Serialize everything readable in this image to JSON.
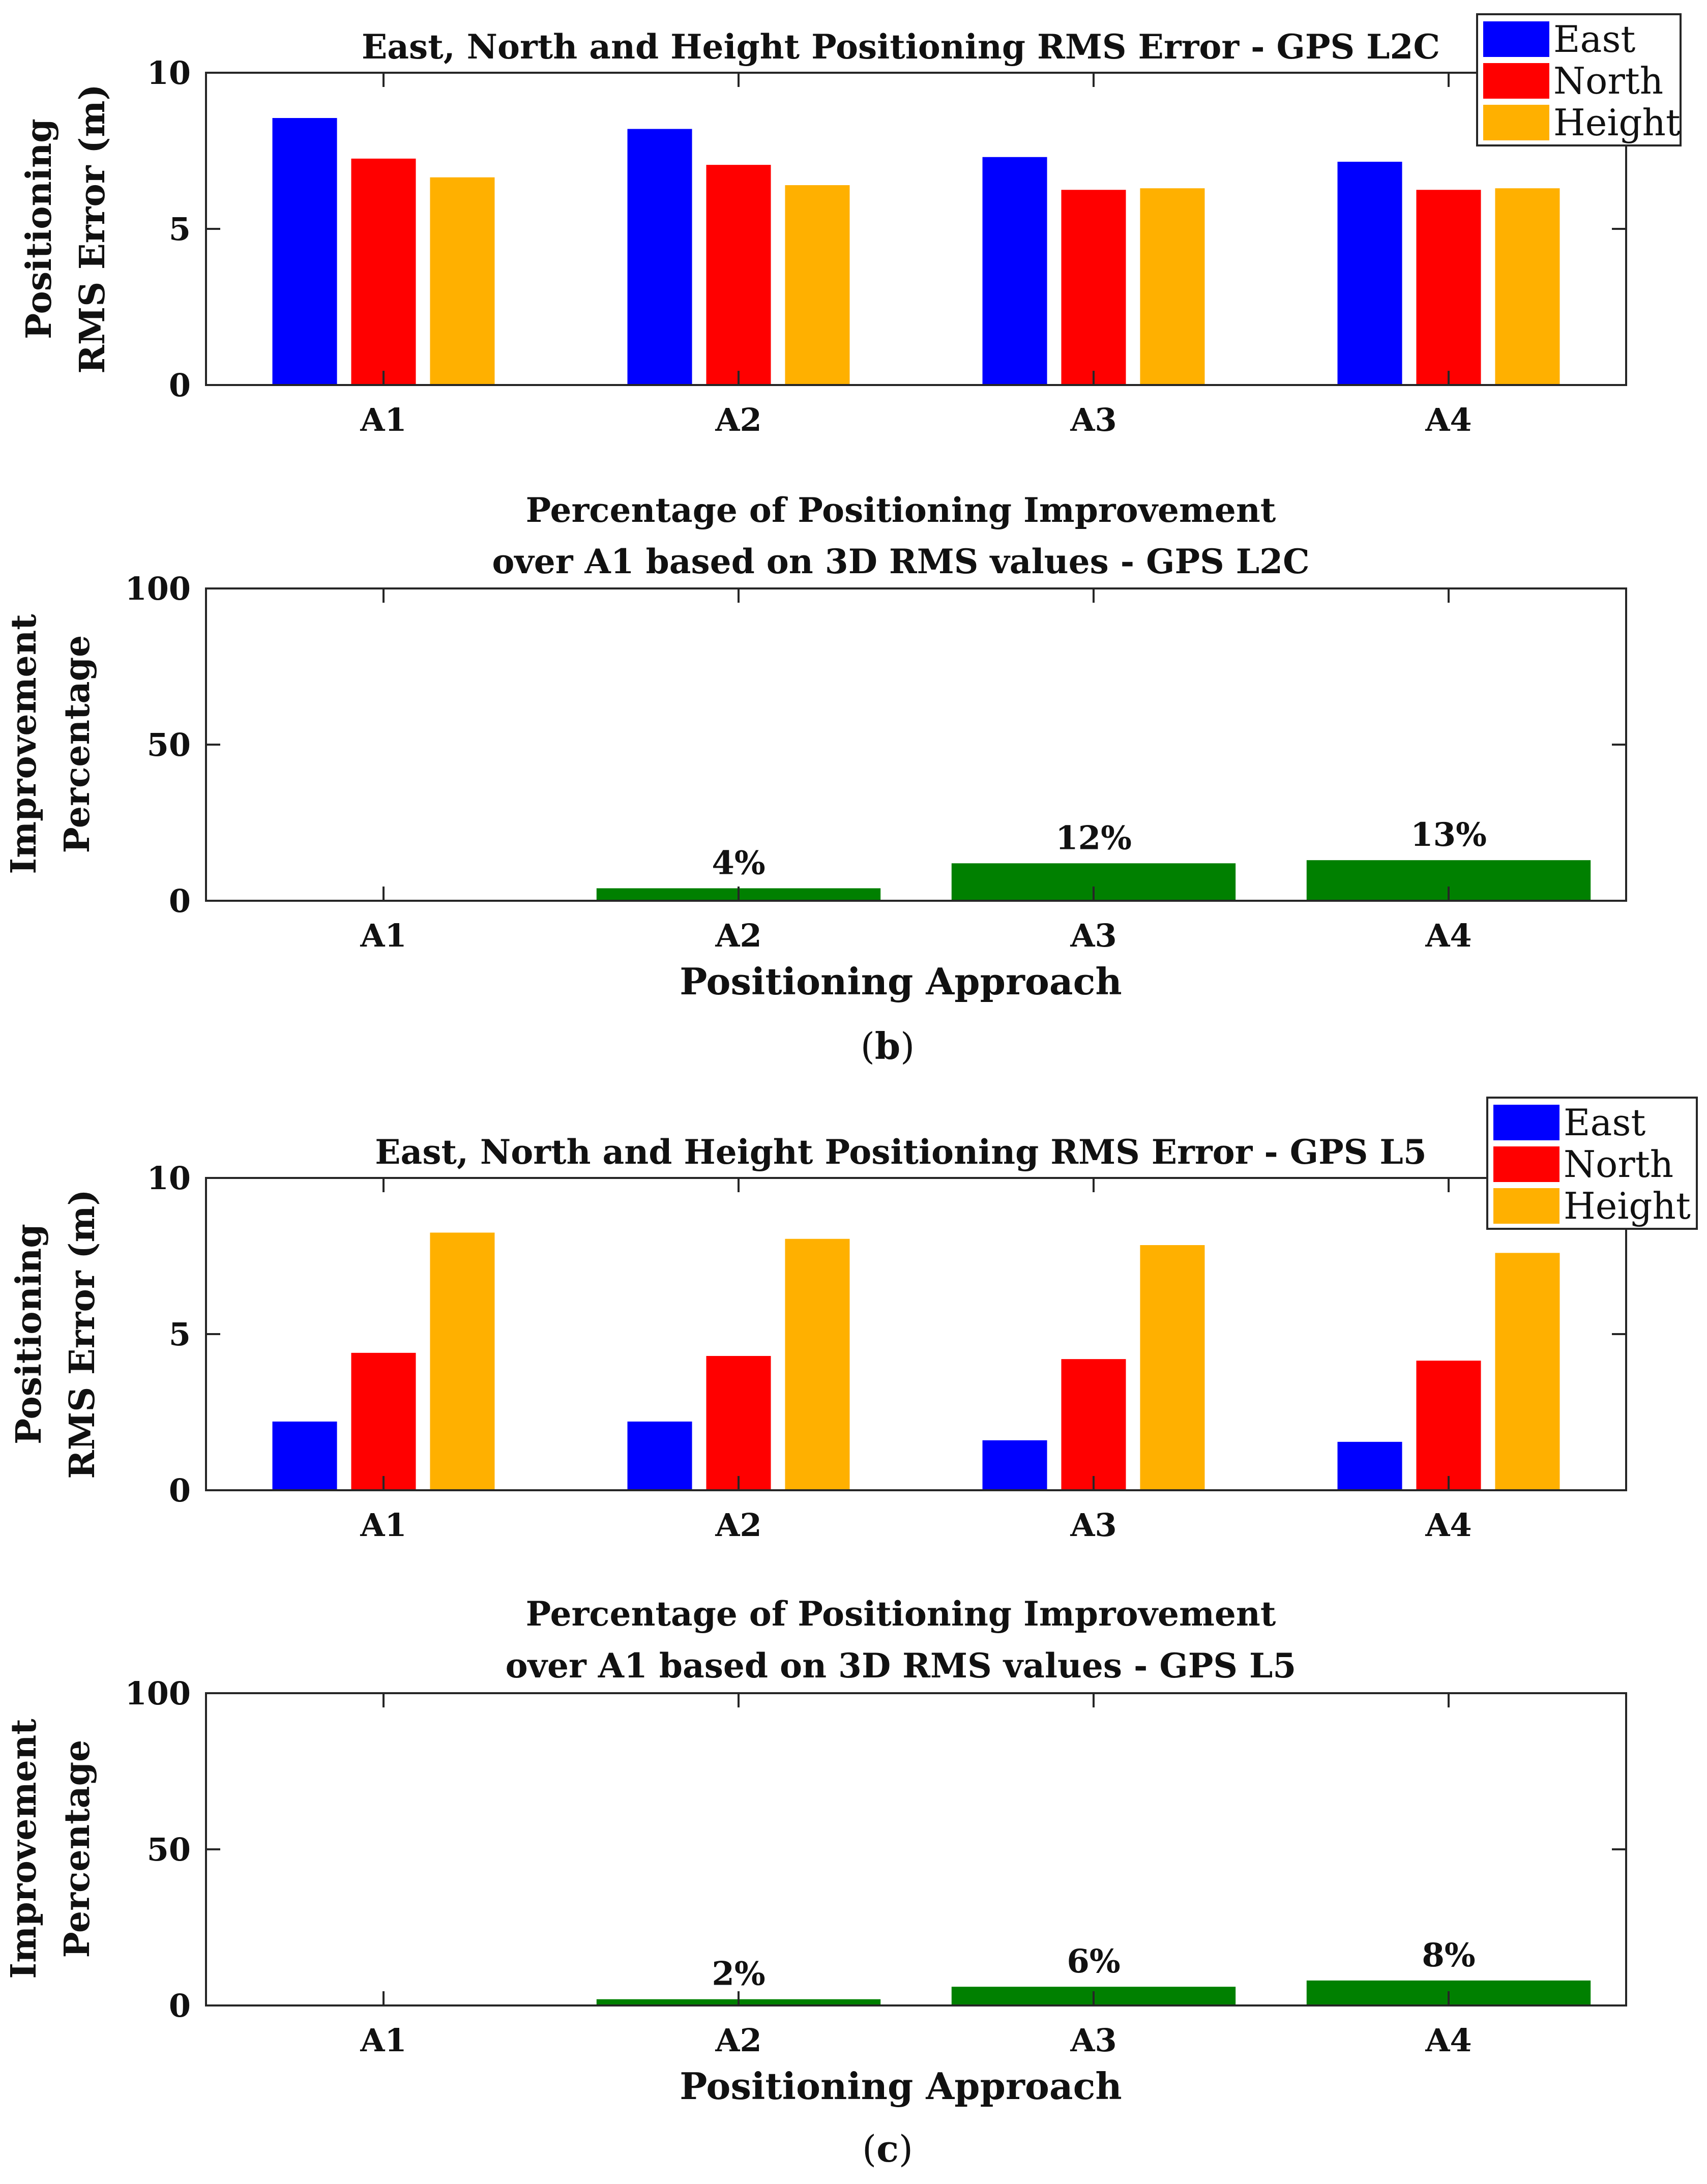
{
  "chart_data": [
    {
      "id": "p1",
      "type": "bar",
      "title_lines": [
        "East, North and Height Positioning RMS Error - GPS L2C"
      ],
      "ylabel_lines": [
        "Positioning",
        "RMS Error (m)"
      ],
      "xlabel": "",
      "categories": [
        "A1",
        "A2",
        "A3",
        "A4"
      ],
      "ylim": [
        0,
        10
      ],
      "yticks": [
        0,
        5,
        10
      ],
      "legend": "top-right",
      "series": [
        {
          "name": "East",
          "color": "#0000ff",
          "values": [
            8.55,
            8.2,
            7.3,
            7.15
          ]
        },
        {
          "name": "North",
          "color": "#ff0000",
          "values": [
            7.25,
            7.05,
            6.25,
            6.25
          ]
        },
        {
          "name": "Height",
          "color": "#ffb000",
          "values": [
            6.65,
            6.4,
            6.3,
            6.3
          ]
        }
      ]
    },
    {
      "id": "p2",
      "type": "bar",
      "title_lines": [
        "Percentage of Positioning Improvement",
        "over A1 based on 3D RMS values - GPS L2C"
      ],
      "ylabel_lines": [
        "Improvement",
        "Percentage"
      ],
      "xlabel": "Positioning Approach",
      "categories": [
        "A1",
        "A2",
        "A3",
        "A4"
      ],
      "ylim": [
        0,
        100
      ],
      "yticks": [
        0,
        50,
        100
      ],
      "series": [
        {
          "name": "Improvement",
          "color": "#008000",
          "values": [
            0,
            4,
            12,
            13
          ],
          "labels": [
            "",
            "4%",
            "12%",
            "13%"
          ]
        }
      ]
    },
    {
      "id": "p3",
      "type": "bar",
      "title_lines": [
        "East, North and Height Positioning RMS Error - GPS L5"
      ],
      "ylabel_lines": [
        "Positioning",
        "RMS Error (m)"
      ],
      "xlabel": "",
      "categories": [
        "A1",
        "A2",
        "A3",
        "A4"
      ],
      "ylim": [
        0,
        10
      ],
      "yticks": [
        0,
        5,
        10
      ],
      "legend": "top-right",
      "series": [
        {
          "name": "East",
          "color": "#0000ff",
          "values": [
            2.2,
            2.2,
            1.6,
            1.55
          ]
        },
        {
          "name": "North",
          "color": "#ff0000",
          "values": [
            4.4,
            4.3,
            4.2,
            4.15
          ]
        },
        {
          "name": "Height",
          "color": "#ffb000",
          "values": [
            8.25,
            8.05,
            7.85,
            7.6
          ]
        }
      ]
    },
    {
      "id": "p4",
      "type": "bar",
      "title_lines": [
        "Percentage of Positioning Improvement",
        "over A1 based on 3D RMS values - GPS L5"
      ],
      "ylabel_lines": [
        "Improvement",
        "Percentage"
      ],
      "xlabel": "Positioning Approach",
      "categories": [
        "A1",
        "A2",
        "A3",
        "A4"
      ],
      "ylim": [
        0,
        100
      ],
      "yticks": [
        0,
        50,
        100
      ],
      "series": [
        {
          "name": "Improvement",
          "color": "#008000",
          "values": [
            0,
            2,
            6,
            8
          ],
          "labels": [
            "",
            "2%",
            "6%",
            "8%"
          ]
        }
      ]
    }
  ],
  "captions": {
    "b": {
      "open": "(",
      "letter": "b",
      "close": ")"
    },
    "c": {
      "open": "(",
      "letter": "c",
      "close": ")"
    }
  }
}
